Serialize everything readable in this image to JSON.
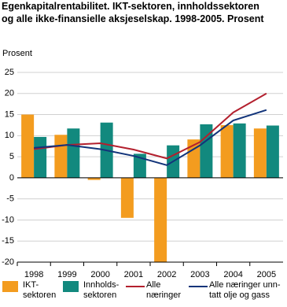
{
  "chart_data": {
    "type": "bar-line",
    "title": "Egenkapitalrentabilitet. IKT-sektoren, innholdssektoren\nog alle ikke-finansielle aksjeselskap. 1998-2005. Prosent",
    "y_label": "Prosent",
    "categories": [
      "1998",
      "1999",
      "2000",
      "2001",
      "2002",
      "2003",
      "2004",
      "2005"
    ],
    "series": [
      {
        "name": "IKT-\nsektoren",
        "kind": "bar",
        "color": "#f39c1f",
        "values": [
          15,
          10.2,
          -0.5,
          -9.5,
          -20,
          9.1,
          12.5,
          11.7
        ]
      },
      {
        "name": "Innholds-\nsektoren",
        "kind": "bar",
        "color": "#12897e",
        "values": [
          9.7,
          11.7,
          13.1,
          5.7,
          7.7,
          12.7,
          12.9,
          12.4
        ]
      },
      {
        "name": "Alle\nnæringer",
        "kind": "line",
        "color": "#b3202e",
        "values": [
          6.8,
          7.8,
          8.2,
          6.7,
          4.6,
          8.5,
          15.5,
          20
        ]
      },
      {
        "name": "Alle næringer unn-\ntatt olje og gass",
        "kind": "line",
        "color": "#12347a",
        "values": [
          7.1,
          7.8,
          6.8,
          5.2,
          3.0,
          7.7,
          13.6,
          16.1
        ]
      }
    ],
    "ylim": [
      -20,
      25
    ],
    "yticks": [
      -20,
      -15,
      -10,
      -5,
      0,
      5,
      10,
      15,
      20,
      25
    ],
    "grid": true
  }
}
